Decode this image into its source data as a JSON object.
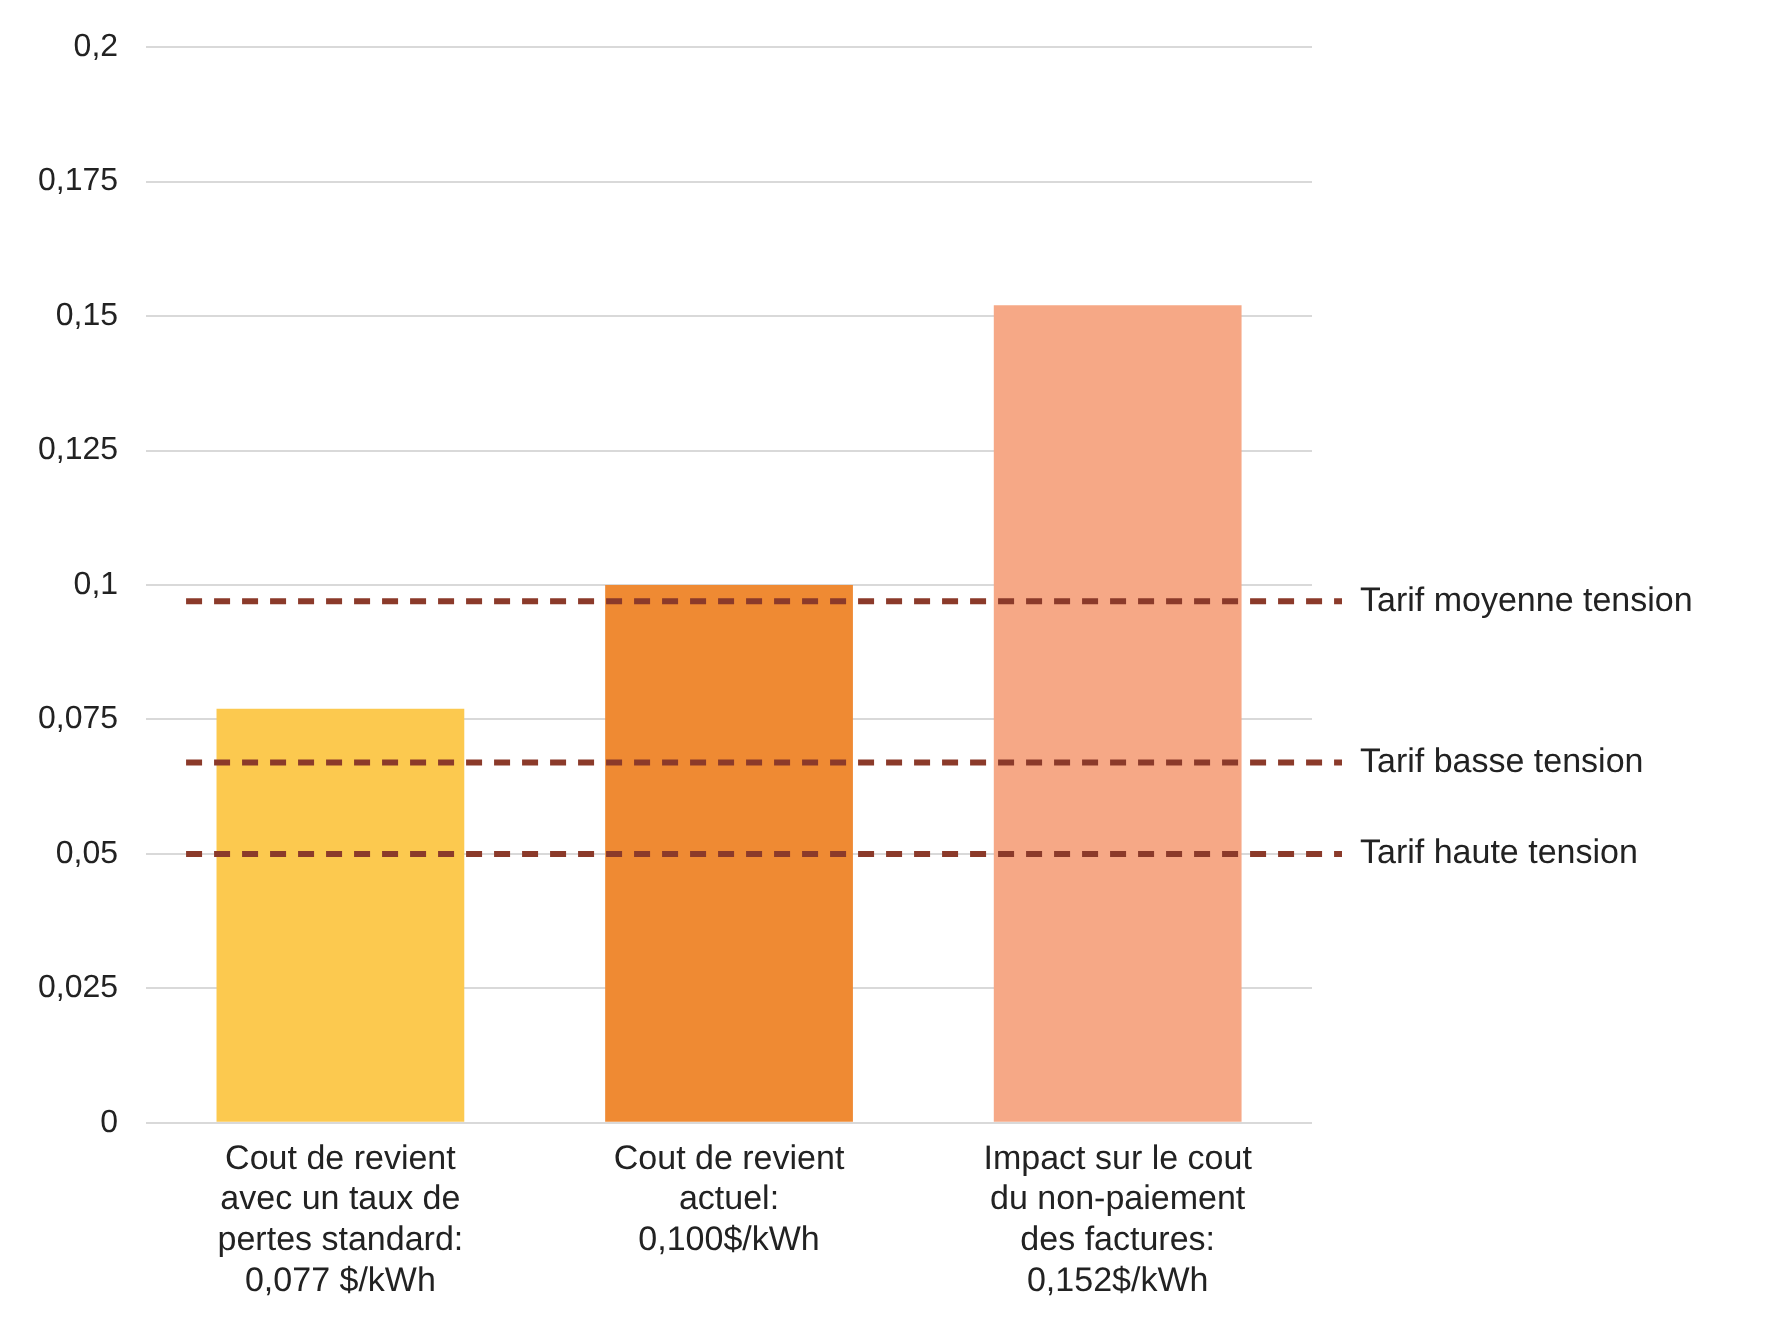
{
  "chart_data": {
    "type": "bar",
    "categories": [
      "Cout de revient\navec un taux de\npertes standard:\n0,077 $/kWh",
      "Cout de revient\nactuel:\n0,100$/kWh",
      "Impact sur le cout\ndu non-paiement\ndes factures:\n0,152$/kWh"
    ],
    "values": [
      0.077,
      0.1,
      0.152
    ],
    "colors": [
      "#fcc94f",
      "#ef8a33",
      "#f6a886"
    ],
    "ylim": [
      0,
      0.2
    ],
    "yticks": [
      {
        "value": 0,
        "label": "0"
      },
      {
        "value": 0.025,
        "label": "0,025"
      },
      {
        "value": 0.05,
        "label": "0,05"
      },
      {
        "value": 0.075,
        "label": "0,075"
      },
      {
        "value": 0.1,
        "label": "0,1"
      },
      {
        "value": 0.125,
        "label": "0,125"
      },
      {
        "value": 0.15,
        "label": "0,15"
      },
      {
        "value": 0.175,
        "label": "0,175"
      },
      {
        "value": 0.2,
        "label": "0,2"
      }
    ],
    "grid": "y",
    "legend": false,
    "ref_lines": [
      {
        "axis": "y",
        "value": 0.097,
        "label": "Tarif moyenne tension",
        "color": "#8b3a2a",
        "line_style": "dashed"
      },
      {
        "axis": "y",
        "value": 0.067,
        "label": "Tarif basse tension",
        "color": "#8b3a2a",
        "line_style": "dashed"
      },
      {
        "axis": "y",
        "value": 0.05,
        "label": "Tarif haute tension",
        "color": "#8b3a2a",
        "line_style": "dashed"
      }
    ]
  }
}
